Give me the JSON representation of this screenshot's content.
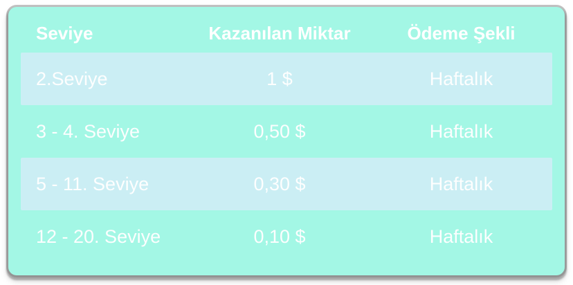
{
  "chart_data": {
    "type": "table",
    "columns": [
      "Seviye",
      "Kazanılan Miktar",
      "Ödeme Şekli"
    ],
    "rows": [
      [
        "2.Seviye",
        "1 $",
        "Haftalık"
      ],
      [
        "3 - 4. Seviye",
        "0,50 $",
        "Haftalık"
      ],
      [
        "5 - 11. Seviye",
        "0,30 $",
        "Haftalık"
      ],
      [
        "12 - 20. Seviye",
        "0,10 $",
        "Haftalık"
      ]
    ],
    "layout": {
      "highlighted_rows": [
        0,
        2
      ],
      "header_bold": true,
      "column_alignment": [
        "left",
        "center",
        "center"
      ]
    }
  },
  "colors": {
    "card_background": "#a3f7e5",
    "row_highlight": "#cbeef4",
    "text": "#ffffff",
    "shadow": "#8a8a8a",
    "page_background": "#ffffff"
  }
}
